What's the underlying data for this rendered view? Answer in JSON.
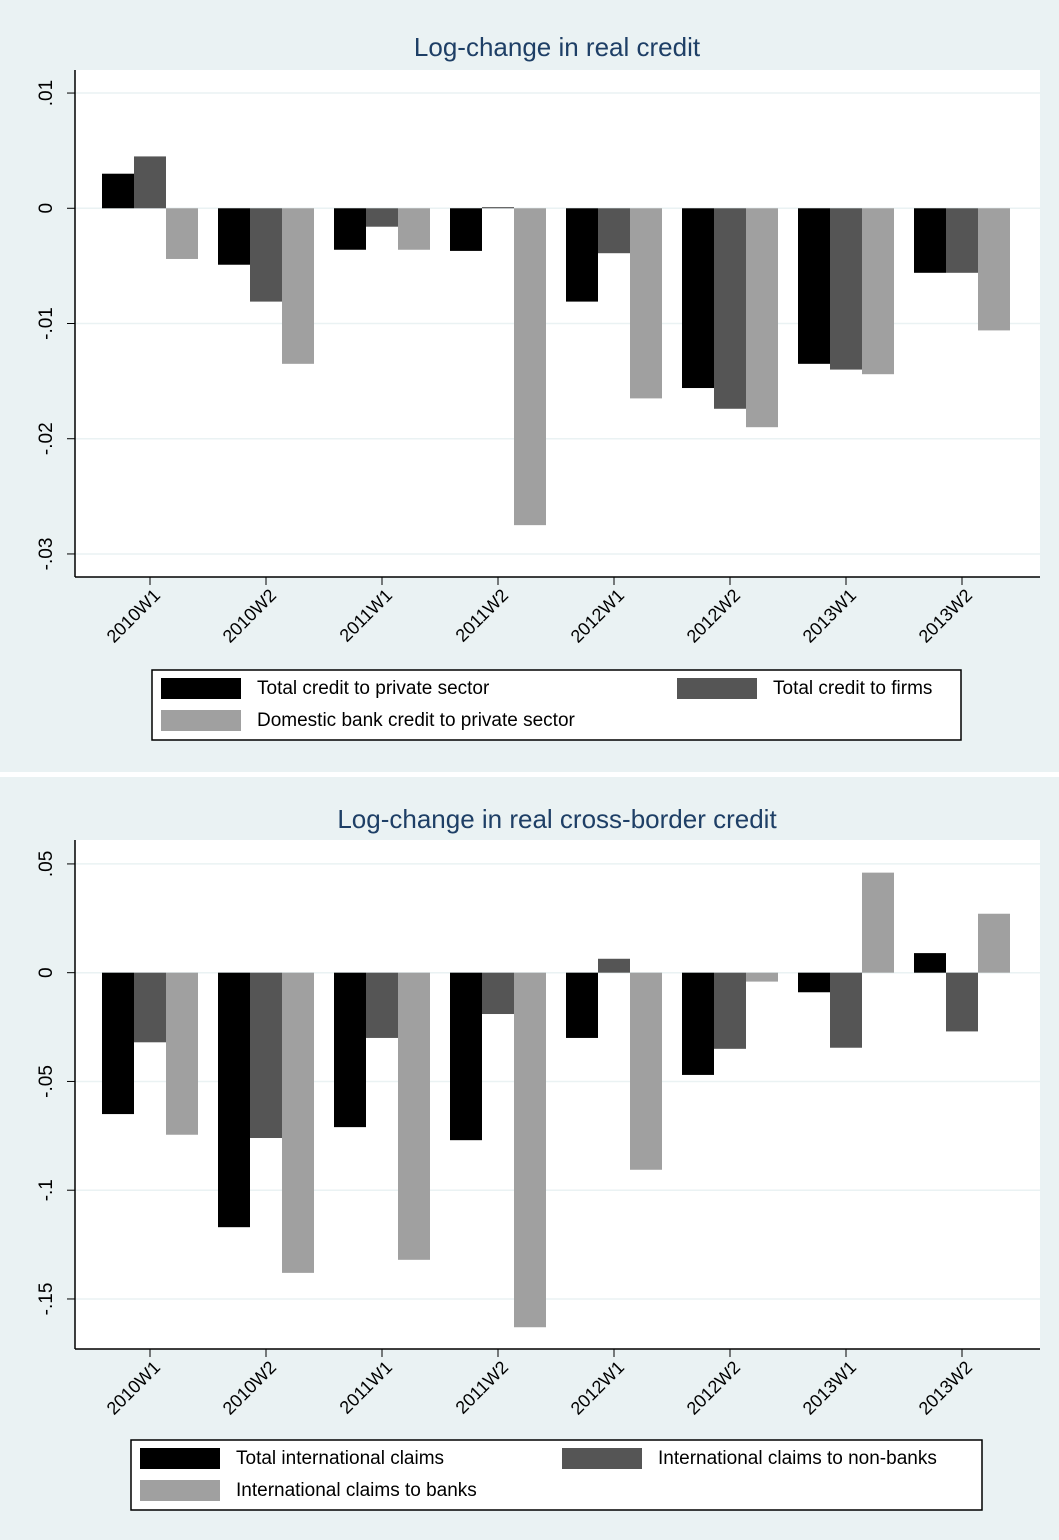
{
  "chart_data": [
    {
      "type": "bar",
      "title": "Log-change in real credit",
      "categories": [
        "2010W1",
        "2010W2",
        "2011W1",
        "2011W2",
        "2012W1",
        "2012W2",
        "2013W1",
        "2013W2"
      ],
      "series": [
        {
          "name": "Total credit to private sector",
          "color": "#000000",
          "values": [
            0.003,
            -0.0049,
            -0.0036,
            -0.0037,
            -0.0081,
            -0.0156,
            -0.0135,
            -0.0056
          ]
        },
        {
          "name": "Total credit to firms",
          "color": "#555555",
          "values": [
            0.0045,
            -0.0081,
            -0.0016,
            0.0001,
            -0.0039,
            -0.0174,
            -0.014,
            -0.0056
          ]
        },
        {
          "name": "Domestic bank credit to private sector",
          "color": "#a0a0a0",
          "values": [
            -0.0044,
            -0.0135,
            -0.0036,
            -0.0275,
            -0.0165,
            -0.019,
            -0.0144,
            -0.0106
          ]
        }
      ],
      "ylim": [
        -0.032,
        0.012
      ],
      "yticks": [
        {
          "value": 0.01,
          "label": ".01"
        },
        0,
        {
          "value": -0.01,
          "label": "-.01"
        },
        {
          "value": -0.02,
          "label": "-.02"
        },
        {
          "value": -0.03,
          "label": "-.03"
        }
      ],
      "grid": true,
      "legend": "bottom"
    },
    {
      "type": "bar",
      "title": "Log-change in real cross-border credit",
      "categories": [
        "2010W1",
        "2010W2",
        "2011W1",
        "2011W2",
        "2012W1",
        "2012W2",
        "2013W1",
        "2013W2"
      ],
      "series": [
        {
          "name": "Total international claims",
          "color": "#000000",
          "values": [
            -0.065,
            -0.117,
            -0.071,
            -0.077,
            -0.03,
            -0.047,
            -0.009,
            0.009
          ]
        },
        {
          "name": "International claims to non-banks",
          "color": "#555555",
          "values": [
            -0.032,
            -0.076,
            -0.03,
            -0.019,
            0.0064,
            -0.035,
            -0.0345,
            -0.027
          ]
        },
        {
          "name": "International claims to banks",
          "color": "#a0a0a0",
          "values": [
            -0.0745,
            -0.138,
            -0.132,
            -0.163,
            -0.0906,
            -0.0041,
            0.046,
            0.0271
          ]
        }
      ],
      "ylim": [
        -0.173,
        0.061
      ],
      "yticks": [
        {
          "value": 0.05,
          "label": ".05"
        },
        0,
        {
          "value": -0.05,
          "label": "-.05"
        },
        {
          "value": -0.1,
          "label": "-.1"
        },
        {
          "value": -0.15,
          "label": "-.15"
        }
      ],
      "grid": true,
      "legend": "bottom"
    }
  ]
}
